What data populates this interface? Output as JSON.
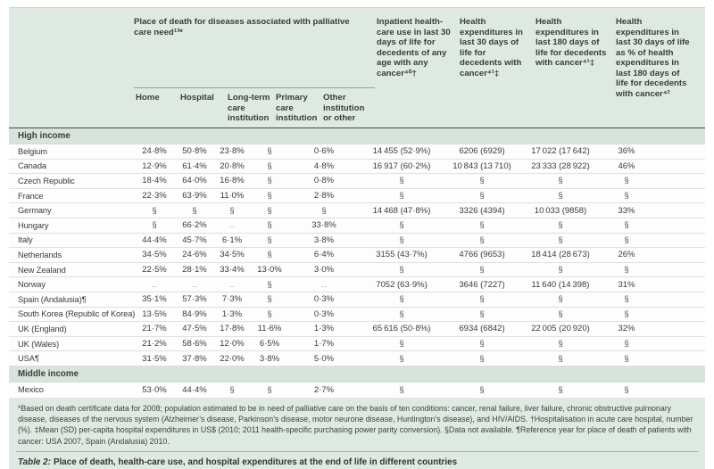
{
  "colors": {
    "table_bg": "#dee9e2",
    "section_band_bg": "#d8e4db",
    "row_bg": "#fcfdfc",
    "dark_rule": "#474747",
    "light_rule": "#9fb6a9",
    "text": "#3b3b3b"
  },
  "table": {
    "group_header": "Place of death for diseases associated with palliative care need¹³*",
    "col_headers": [
      "Home",
      "Hospital",
      "Long-term care institution",
      "Primary care institution",
      "Other institution or other"
    ],
    "wide_headers": [
      "Inpatient health-care use in last 30 days of life for decedents of any age with any cancer⁴⁰†",
      "Health expenditures in last 30 days of life for decedents with cancer⁴¹‡",
      "Health expenditures in last 180 days of life for decedents with cancer⁴¹‡",
      "Health expenditures in last 30 days of life as % of health expenditures in last 180 days of life for decedents with cancer⁴²"
    ],
    "sections": [
      {
        "label": "High income",
        "rows": [
          {
            "country": "Belgium",
            "cells": [
              "24·8%",
              "50·8%",
              "23·8%",
              "§",
              "0·6%",
              "14 455 (52·9%)",
              "6206 (6929)",
              "17 022 (17 642)",
              "36%"
            ]
          },
          {
            "country": "Canada",
            "cells": [
              "12·9%",
              "61·4%",
              "20·8%",
              "§",
              "4·8%",
              "16 917 (60·2%)",
              "10 843 (13 710)",
              "23 333 (28 922)",
              "46%"
            ]
          },
          {
            "country": "Czech Republic",
            "cells": [
              "18·4%",
              "64·0%",
              "16·8%",
              "§",
              "0·8%",
              "§",
              "§",
              "§",
              "§"
            ]
          },
          {
            "country": "France",
            "cells": [
              "22·3%",
              "63·9%",
              "11·0%",
              "§",
              "2·8%",
              "§",
              "§",
              "§",
              "§"
            ]
          },
          {
            "country": "Germany",
            "cells": [
              "§",
              "§",
              "§",
              "§",
              "§",
              "14 468 (47·8%)",
              "3326 (4394)",
              "10 033 (9858)",
              "33%"
            ]
          },
          {
            "country": "Hungary",
            "cells": [
              "§",
              "66·2%",
              "..",
              "§",
              "33·8%",
              "§",
              "§",
              "§",
              "§"
            ]
          },
          {
            "country": "Italy",
            "cells": [
              "44·4%",
              "45·7%",
              "6·1%",
              "§",
              "3·8%",
              "§",
              "§",
              "§",
              "§"
            ]
          },
          {
            "country": "Netherlands",
            "cells": [
              "34·5%",
              "24·6%",
              "34·5%",
              "§",
              "6·4%",
              "3155 (43·7%)",
              "4766 (9653)",
              "18 414 (28 673)",
              "26%"
            ]
          },
          {
            "country": "New Zealand",
            "cells": [
              "22·5%",
              "28·1%",
              "33·4%",
              "13·0%",
              "3·0%",
              "§",
              "§",
              "§",
              "§"
            ]
          },
          {
            "country": "Norway",
            "cells": [
              "..",
              "..",
              "..",
              "§",
              "..",
              "7052 (63·9%)",
              "3646 (7227)",
              "11 640 (14 398)",
              "31%"
            ]
          },
          {
            "country": "Spain (Andalusia)¶",
            "cells": [
              "35·1%",
              "57·3%",
              "7·3%",
              "§",
              "0·3%",
              "§",
              "§",
              "§",
              "§"
            ]
          },
          {
            "country": "South Korea (Republic of Korea)",
            "cells": [
              "13·5%",
              "84·9%",
              "1·3%",
              "§",
              "0·3%",
              "§",
              "§",
              "§",
              "§"
            ]
          },
          {
            "country": "UK (England)",
            "cells": [
              "21·7%",
              "47·5%",
              "17·8%",
              "11·6%",
              "1·3%",
              "65 616 (50·8%)",
              "6934 (6842)",
              "22 005 (20 920)",
              "32%"
            ]
          },
          {
            "country": "UK (Wales)",
            "cells": [
              "21·2%",
              "58·6%",
              "12·0%",
              "6·5%",
              "1·7%",
              "§",
              "§",
              "§",
              "§"
            ]
          },
          {
            "country": "USA¶",
            "cells": [
              "31·5%",
              "37·8%",
              "22·0%",
              "3·8%",
              "5·0%",
              "§",
              "§",
              "§",
              "§"
            ]
          }
        ]
      },
      {
        "label": "Middle income",
        "rows": [
          {
            "country": "Mexico",
            "cells": [
              "53·0%",
              "44·4%",
              "§",
              "§",
              "2·7%",
              "§",
              "§",
              "§",
              "§"
            ]
          }
        ]
      }
    ],
    "footnote": "*Based on death certificate data for 2008; population estimated to be in need of palliative care on the basis of ten conditions: cancer, renal failure, liver failure, chronic obstructive pulmonary disease, diseases of the nervous system (Alzheimer’s disease, Parkinson’s disease, motor neurone disease, Huntington’s disease), and HIV/AIDS. †Hospitalisation in acute care hospital, number (%). ‡Mean (SD) per-capita hospital expenditures in US$ (2010; 2011 health-specific purchasing power parity conversion). §Data not available. ¶Reference year for place of death of patients with cancer: USA 2007, Spain (Andalusia) 2010.",
    "caption_label": "Table 2:",
    "caption_text": "Place of death, health-care use, and hospital expenditures at the end of life in different countries"
  }
}
